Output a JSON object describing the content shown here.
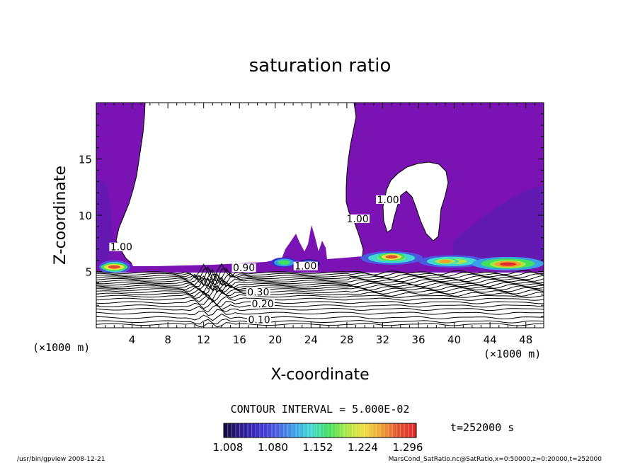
{
  "chart_data": {
    "type": "heatmap",
    "title": "saturation ratio",
    "xlabel": "X-coordinate",
    "ylabel": "Z-coordinate",
    "x_unit": "(×1000 m)",
    "z_unit": "(×1000 m)",
    "xlim": [
      0,
      50
    ],
    "ylim": [
      0,
      20
    ],
    "xticks": [
      4,
      8,
      12,
      16,
      20,
      24,
      28,
      32,
      36,
      40,
      44,
      48
    ],
    "yticks": [
      5,
      10,
      15
    ],
    "contour_interval_label": "CONTOUR INTERVAL = 5.000E-02",
    "time_label": "t=252000 s",
    "colorbar": {
      "ticks": [
        "1.008",
        "1.080",
        "1.152",
        "1.224",
        "1.296"
      ],
      "min": 1.008,
      "max": 1.296,
      "colors": [
        "#140a3c",
        "#2a1a8c",
        "#3b2ccc",
        "#4a5ae0",
        "#3aa0e8",
        "#40d8d0",
        "#40e060",
        "#a8e840",
        "#f0e040",
        "#f0a030",
        "#e05030",
        "#e02828"
      ]
    },
    "contour_labels": [
      {
        "text": "0.10",
        "x": 18.2,
        "z": 0.55
      },
      {
        "text": "0.20",
        "x": 18.6,
        "z": 1.95
      },
      {
        "text": "0.30",
        "x": 18.1,
        "z": 3.0
      },
      {
        "text": "0.90",
        "x": 16.5,
        "z": 5.15
      },
      {
        "text": "1.00",
        "x": 2.8,
        "z": 7.0
      },
      {
        "text": "1.00",
        "x": 29.2,
        "z": 9.5
      },
      {
        "text": "1.00",
        "x": 32.6,
        "z": 11.2
      },
      {
        "text": "1.00",
        "x": 23.4,
        "z": 5.3
      }
    ],
    "background_color": "#7a12b4",
    "bottom_layer_color": "#ffffff",
    "grid": false
  },
  "footer": {
    "left": "/usr/bin/gpview   2008-12-21",
    "right": "MarsCond_SatRatio.nc@SatRatio,x=0:50000,z=0:20000,t=252000"
  }
}
